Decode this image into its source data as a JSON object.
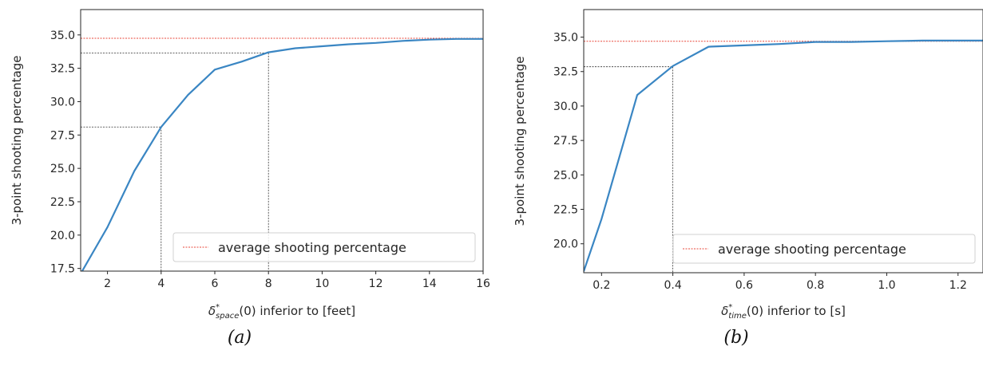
{
  "colors": {
    "line": "#3a86c3",
    "reference": "#e8483b",
    "guide": "#333333",
    "axis": "#262626"
  },
  "chart_data": [
    {
      "type": "line",
      "caption": "(a)",
      "xlabel_prefix": "δ",
      "xlabel_sup": "*",
      "xlabel_sub": "space",
      "xlabel_suffix": "(0) inferior to [feet]",
      "ylabel": "3-point shooting percentage",
      "xlim": [
        1,
        16
      ],
      "ylim": [
        17.3,
        36.9
      ],
      "xticks": [
        2,
        4,
        6,
        8,
        10,
        12,
        14,
        16
      ],
      "xtick_labels": [
        "2",
        "4",
        "6",
        "8",
        "10",
        "12",
        "14",
        "16"
      ],
      "yticks": [
        17.5,
        20.0,
        22.5,
        25.0,
        27.5,
        30.0,
        32.5,
        35.0
      ],
      "ytick_labels": [
        "17.5",
        "20.0",
        "22.5",
        "25.0",
        "27.5",
        "30.0",
        "32.5",
        "35.0"
      ],
      "series": [
        {
          "x": [
            1,
            2,
            3,
            4,
            5,
            6,
            7,
            8,
            9,
            10,
            11,
            12,
            13,
            14,
            15,
            16
          ],
          "y": [
            17.1,
            20.6,
            24.8,
            28.1,
            30.5,
            32.4,
            33.0,
            33.7,
            34.0,
            34.15,
            34.3,
            34.4,
            34.55,
            34.65,
            34.7,
            34.7
          ]
        }
      ],
      "reference_line": {
        "y": 34.75,
        "label": "average shooting percentage"
      },
      "guides": [
        {
          "x": 4,
          "y": 28.1
        },
        {
          "x": 8,
          "y": 33.65
        }
      ],
      "legend": "lower-right",
      "grid": false
    },
    {
      "type": "line",
      "caption": "(b)",
      "xlabel_prefix": "δ",
      "xlabel_sup": "*",
      "xlabel_sub": "time",
      "xlabel_suffix": "(0) inferior to [s]",
      "ylabel": "3-point shooting percentage",
      "xlim": [
        0.15,
        1.27
      ],
      "ylim": [
        17.9,
        37.0
      ],
      "xticks": [
        0.2,
        0.4,
        0.6,
        0.8,
        1.0,
        1.2
      ],
      "xtick_labels": [
        "0.2",
        "0.4",
        "0.6",
        "0.8",
        "1.0",
        "1.2"
      ],
      "yticks": [
        20.0,
        22.5,
        25.0,
        27.5,
        30.0,
        32.5,
        35.0
      ],
      "ytick_labels": [
        "20.0",
        "22.5",
        "25.0",
        "27.5",
        "30.0",
        "32.5",
        "35.0"
      ],
      "series": [
        {
          "x": [
            0.15,
            0.2,
            0.3,
            0.4,
            0.5,
            0.6,
            0.7,
            0.8,
            0.9,
            1.0,
            1.1,
            1.2,
            1.27
          ],
          "y": [
            18.0,
            21.8,
            30.8,
            32.9,
            34.3,
            34.4,
            34.5,
            34.65,
            34.65,
            34.7,
            34.75,
            34.75,
            34.75
          ]
        }
      ],
      "reference_line": {
        "y": 34.7,
        "label": "average shooting percentage"
      },
      "guides": [
        {
          "x": 0.4,
          "y": 32.85
        }
      ],
      "legend": "lower-right",
      "grid": false
    }
  ]
}
